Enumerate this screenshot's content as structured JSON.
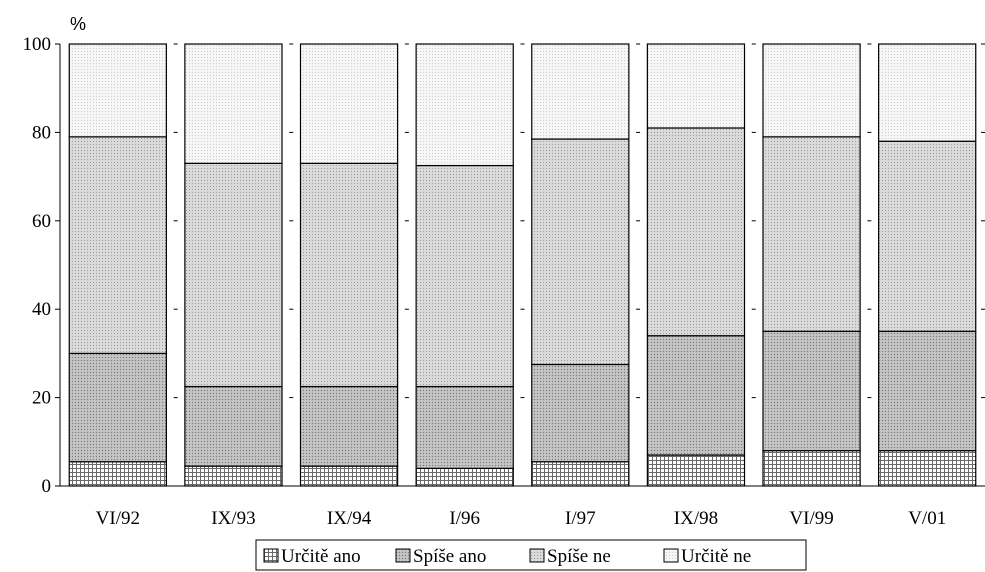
{
  "chart_data": {
    "type": "bar",
    "stacked": true,
    "percent": true,
    "unit_label": "%",
    "categories": [
      "VI/92",
      "IX/93",
      "IX/94",
      "I/96",
      "I/97",
      "IX/98",
      "VI/99",
      "V/01"
    ],
    "series": [
      {
        "name": "Určitě ano",
        "values": [
          5.5,
          4.5,
          4.5,
          4,
          5.5,
          7,
          8,
          8
        ],
        "color": "#d9d9d9",
        "pattern": "grid"
      },
      {
        "name": "Spíše ano",
        "values": [
          24.5,
          18,
          18,
          18.5,
          22,
          27,
          27,
          27
        ],
        "color": "#c4c4c4",
        "pattern": "dots-dense"
      },
      {
        "name": "Spíše ne",
        "values": [
          49,
          50.5,
          50.5,
          50,
          51,
          47,
          44,
          43
        ],
        "color": "#d6d6d6",
        "pattern": "dots"
      },
      {
        "name": "Určitě ne",
        "values": [
          21,
          27,
          27,
          27.5,
          21.5,
          19,
          21,
          22
        ],
        "color": "#f3f3f3",
        "pattern": "dots-light"
      }
    ],
    "ylim": [
      0,
      100
    ],
    "yticks": [
      0,
      20,
      40,
      60,
      80,
      100
    ],
    "legend_position": "bottom",
    "grid": false
  }
}
